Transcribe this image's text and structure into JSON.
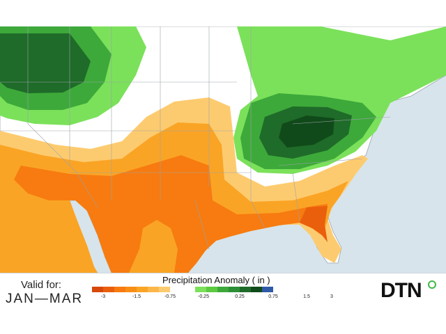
{
  "footer": {
    "valid_label": "Valid for:",
    "valid_range": "JAN—MAR",
    "legend_title": "Precipitation Anomaly ( in )",
    "logo_text": "DTN"
  },
  "legend": {
    "dry_colors": [
      "#d8470b",
      "#ea5f0c",
      "#f77b10",
      "#f98e16",
      "#faa425",
      "#fbb64a",
      "#fdcb6f"
    ],
    "wet_colors": [
      "#7be15a",
      "#5cc940",
      "#3da93a",
      "#2c8f36",
      "#1f6b29",
      "#114a1a",
      "#2f5aa8"
    ],
    "ticks": [
      "-3",
      "-1.5",
      "-0.75",
      "-0.25",
      "0.25",
      "0.75",
      "1.5",
      "3"
    ]
  },
  "map": {
    "water_color": "#d7e4ec",
    "land_color": "#ffffff",
    "border_color": "#9aa3ab"
  }
}
